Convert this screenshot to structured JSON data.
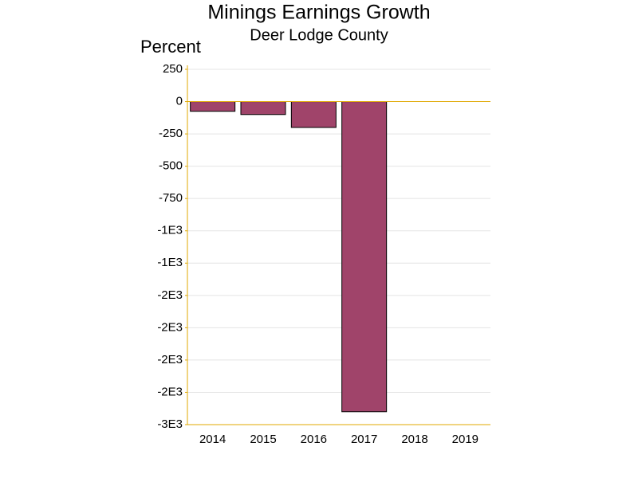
{
  "chart_data": {
    "type": "bar",
    "title": "Minings Earnings Growth",
    "subtitle": "Deer Lodge County",
    "y_label": "Percent",
    "categories": [
      "2014",
      "2015",
      "2016",
      "2017",
      "2018",
      "2019"
    ],
    "values": [
      -75,
      -100,
      -200,
      -2400,
      null,
      null
    ],
    "color": "#a0446a",
    "ylim": [
      -2500,
      250
    ],
    "yticks": [
      250,
      0,
      -250,
      -500,
      -750,
      {
        "value": -1000,
        "label": "-1E3"
      },
      {
        "value": -1250,
        "label": "-1E3"
      },
      {
        "value": -1500,
        "label": "-2E3"
      },
      {
        "value": -1750,
        "label": "-2E3"
      },
      {
        "value": -2000,
        "label": "-2E3"
      },
      {
        "value": -2250,
        "label": "-2E3"
      },
      {
        "value": -2500,
        "label": "-3E3"
      }
    ],
    "grid": true
  }
}
